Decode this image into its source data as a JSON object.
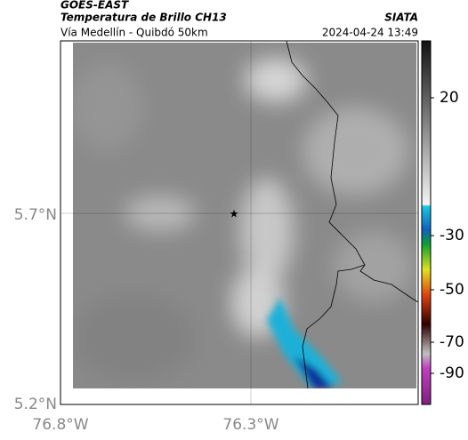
{
  "header": {
    "satellite": "GOES-EAST",
    "product": "Temperatura de Brillo CH13",
    "route": "Vía Medellín - Quibdó 50km",
    "source": "SIATA",
    "timestamp": "2024-04-24 13:49"
  },
  "map": {
    "lat_labels": [
      "5.7°N",
      "5.2°N"
    ],
    "lon_labels": [
      "76.8°W",
      "76.3°W"
    ]
  },
  "colorbar": {
    "ticks": [
      "20",
      "-30",
      "-50",
      "-70",
      "-90"
    ]
  }
}
